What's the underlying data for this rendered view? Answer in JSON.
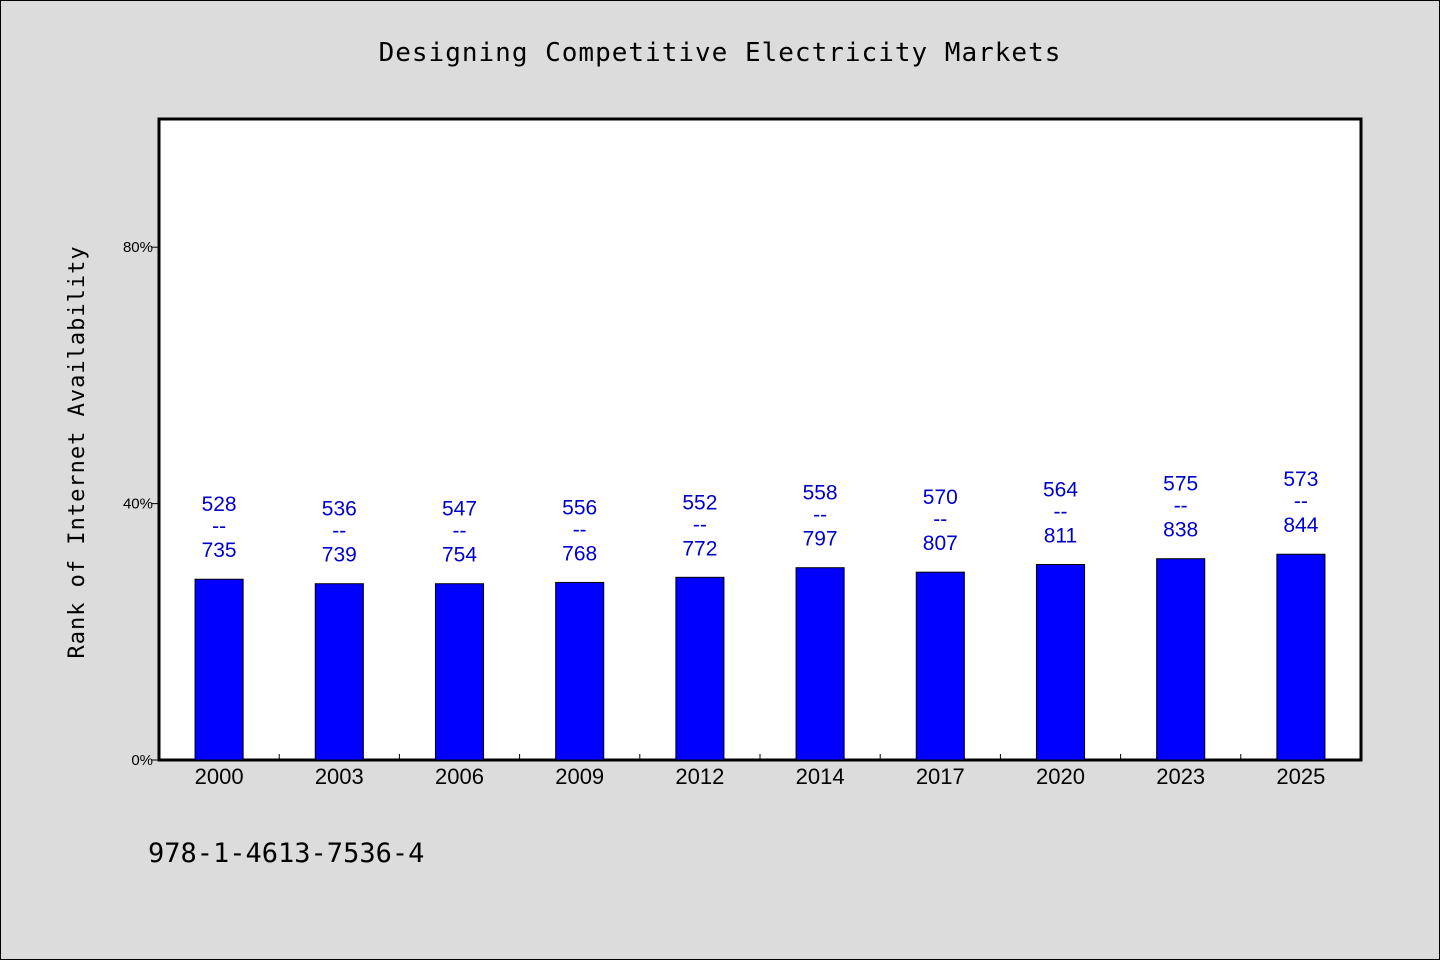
{
  "chart_data": {
    "type": "bar",
    "title": "Designing Competitive Electricity Markets",
    "xlabel": "",
    "ylabel": "Rank of Internet Availability",
    "categories": [
      "2000",
      "2003",
      "2006",
      "2009",
      "2012",
      "2014",
      "2017",
      "2020",
      "2023",
      "2025"
    ],
    "values": [
      28.2,
      27.5,
      27.5,
      27.7,
      28.5,
      30.0,
      29.3,
      30.5,
      31.4,
      32.1
    ],
    "data_labels": [
      {
        "top": "528",
        "sep": "--",
        "bottom": "735"
      },
      {
        "top": "536",
        "sep": "--",
        "bottom": "739"
      },
      {
        "top": "547",
        "sep": "--",
        "bottom": "754"
      },
      {
        "top": "556",
        "sep": "--",
        "bottom": "768"
      },
      {
        "top": "552",
        "sep": "--",
        "bottom": "772"
      },
      {
        "top": "558",
        "sep": "--",
        "bottom": "797"
      },
      {
        "top": "570",
        "sep": "--",
        "bottom": "807"
      },
      {
        "top": "564",
        "sep": "--",
        "bottom": "811"
      },
      {
        "top": "575",
        "sep": "--",
        "bottom": "838"
      },
      {
        "top": "573",
        "sep": "--",
        "bottom": "844"
      }
    ],
    "yticks": [
      {
        "value": 0,
        "label": "0%"
      },
      {
        "value": 40,
        "label": "40%"
      },
      {
        "value": 80,
        "label": "80%"
      }
    ],
    "ylim": [
      0,
      100
    ],
    "grid": false,
    "legend": "none",
    "colors": {
      "bar": "#0000ff",
      "bar_edge": "#000000",
      "label": "#0000cc",
      "plot_bg": "#ffffff",
      "figure_bg": "#dcdcdc"
    }
  },
  "footnote": "978-1-4613-7536-4"
}
